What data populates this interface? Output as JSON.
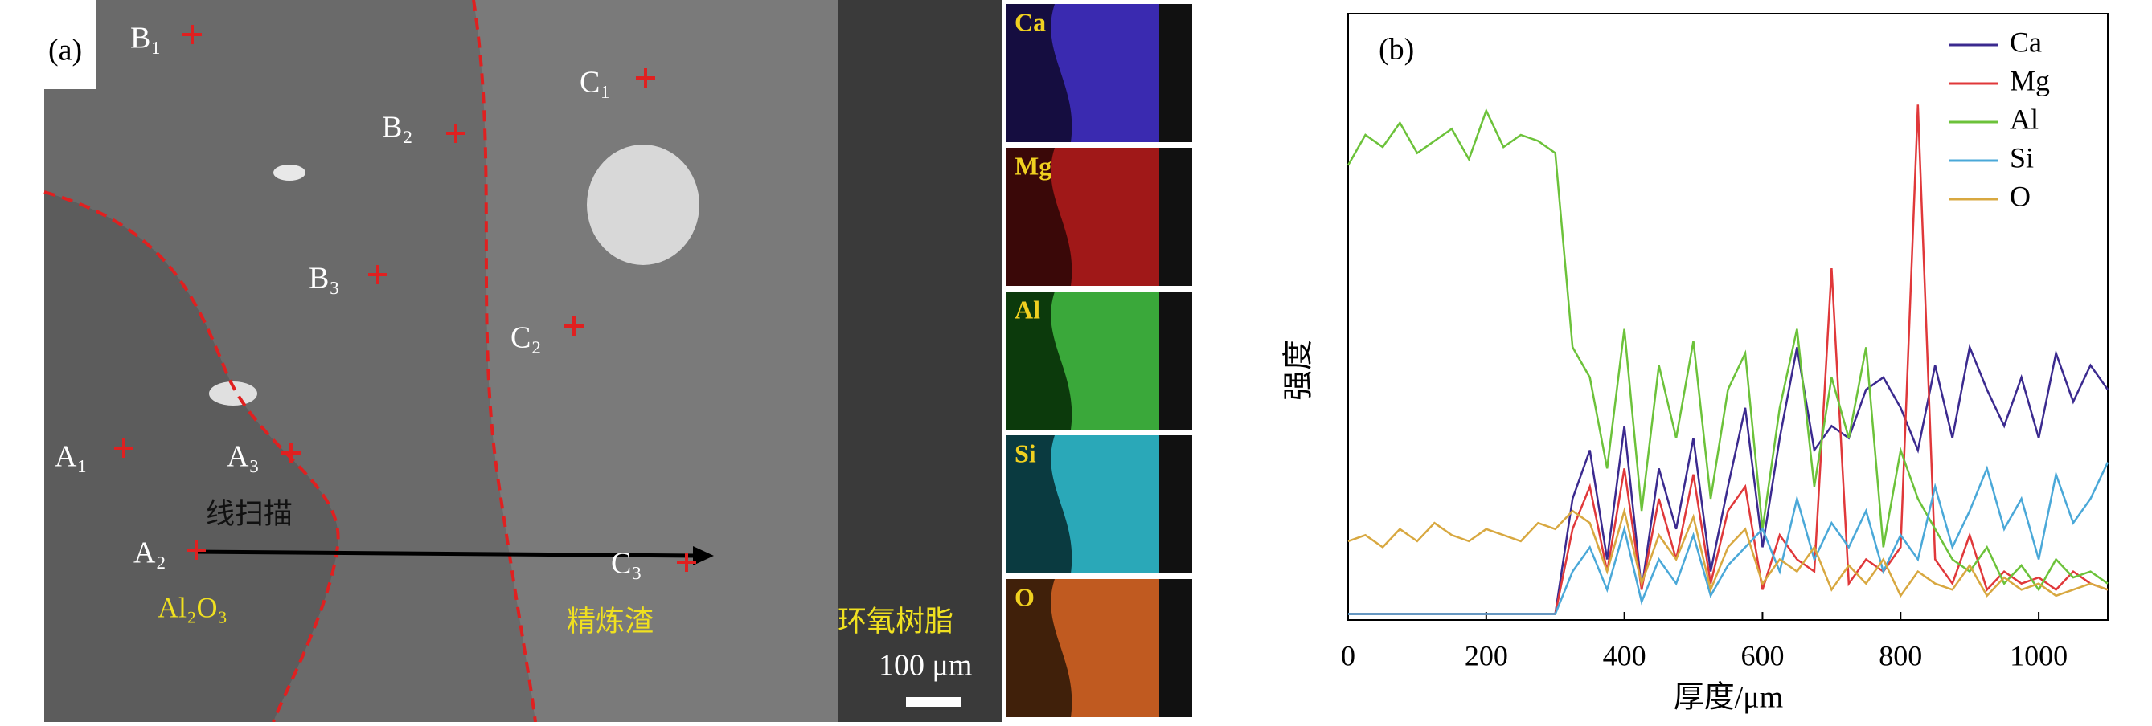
{
  "panel_a": {
    "label": "(a)",
    "points": [
      "B₁",
      "B₂",
      "B₃",
      "C₁",
      "C₂",
      "C₃",
      "A₁",
      "A₂",
      "A₃"
    ],
    "scan_label": "线扫描",
    "regions": [
      "Al₂O₃",
      "精炼渣",
      "环氧树脂"
    ],
    "scale_bar": "100 μm",
    "maps": [
      "Ca",
      "Mg",
      "Al",
      "Si",
      "O"
    ]
  },
  "chart_data": {
    "type": "line",
    "panel_label": "(b)",
    "x_label": "厚度/μm",
    "y_label": "强度",
    "x": [
      0,
      25,
      50,
      75,
      100,
      125,
      150,
      175,
      200,
      225,
      250,
      275,
      300,
      325,
      350,
      375,
      400,
      425,
      450,
      475,
      500,
      525,
      550,
      575,
      600,
      625,
      650,
      675,
      700,
      725,
      750,
      775,
      800,
      825,
      850,
      875,
      900,
      925,
      950,
      975,
      1000,
      1025,
      1050,
      1075,
      1100
    ],
    "xlim": [
      0,
      1100
    ],
    "xticks": [
      0,
      200,
      400,
      600,
      800,
      1000
    ],
    "ylim": [
      0,
      100
    ],
    "legend": "upper right",
    "series": [
      {
        "name": "Ca",
        "color": "#3b2a8f",
        "values": [
          1,
          1,
          1,
          1,
          1,
          1,
          1,
          1,
          1,
          1,
          1,
          1,
          1,
          20,
          28,
          10,
          32,
          5,
          25,
          15,
          30,
          8,
          22,
          35,
          12,
          30,
          45,
          28,
          32,
          30,
          38,
          40,
          35,
          28,
          42,
          30,
          45,
          38,
          32,
          40,
          30,
          44,
          36,
          42,
          38
        ]
      },
      {
        "name": "Mg",
        "color": "#e0383a",
        "values": [
          1,
          1,
          1,
          1,
          1,
          1,
          1,
          1,
          1,
          1,
          1,
          1,
          1,
          15,
          22,
          8,
          25,
          5,
          20,
          10,
          24,
          6,
          18,
          22,
          5,
          14,
          10,
          8,
          58,
          6,
          10,
          8,
          12,
          85,
          10,
          6,
          14,
          5,
          8,
          6,
          7,
          5,
          8,
          6,
          5
        ]
      },
      {
        "name": "Al",
        "color": "#6cc23a",
        "values": [
          75,
          80,
          78,
          82,
          77,
          79,
          81,
          76,
          84,
          78,
          80,
          79,
          77,
          45,
          40,
          25,
          48,
          18,
          42,
          30,
          46,
          20,
          38,
          44,
          15,
          35,
          48,
          22,
          40,
          30,
          45,
          12,
          28,
          20,
          15,
          10,
          8,
          12,
          6,
          9,
          5,
          10,
          7,
          8,
          6
        ]
      },
      {
        "name": "Si",
        "color": "#4aa8d8",
        "values": [
          1,
          1,
          1,
          1,
          1,
          1,
          1,
          1,
          1,
          1,
          1,
          1,
          1,
          8,
          12,
          5,
          15,
          3,
          10,
          6,
          14,
          4,
          9,
          12,
          15,
          8,
          20,
          10,
          16,
          12,
          18,
          8,
          14,
          10,
          22,
          12,
          18,
          25,
          15,
          20,
          10,
          24,
          16,
          20,
          26
        ]
      },
      {
        "name": "O",
        "color": "#d8a840",
        "values": [
          13,
          14,
          12,
          15,
          13,
          16,
          14,
          13,
          15,
          14,
          13,
          16,
          15,
          18,
          16,
          8,
          18,
          6,
          14,
          10,
          17,
          5,
          12,
          15,
          6,
          10,
          8,
          12,
          5,
          9,
          6,
          10,
          4,
          8,
          6,
          5,
          9,
          4,
          7,
          5,
          6,
          4,
          5,
          6,
          5
        ]
      }
    ]
  }
}
